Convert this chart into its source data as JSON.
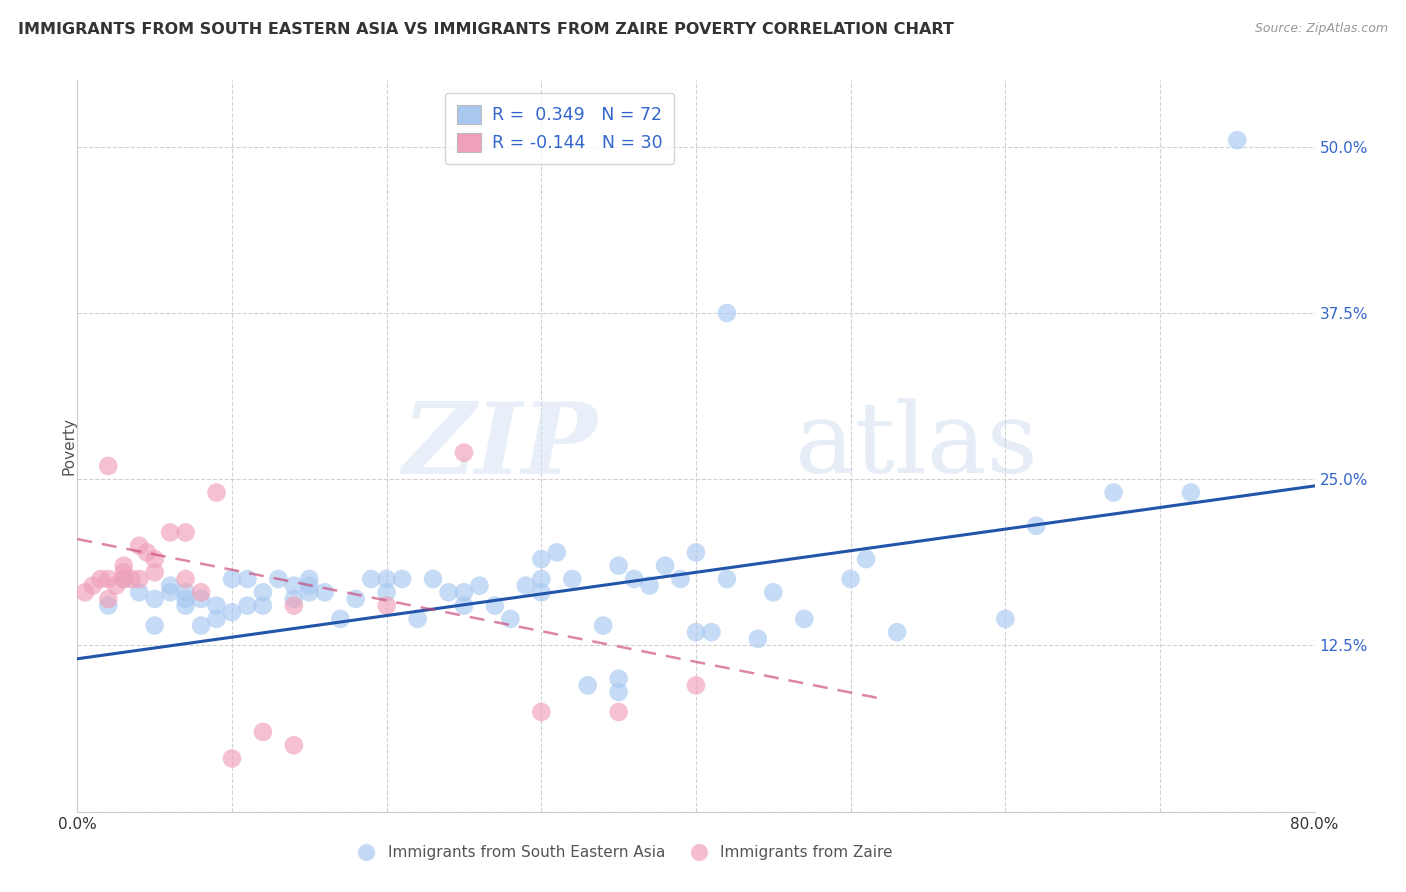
{
  "title": "IMMIGRANTS FROM SOUTH EASTERN ASIA VS IMMIGRANTS FROM ZAIRE POVERTY CORRELATION CHART",
  "source": "Source: ZipAtlas.com",
  "ylabel": "Poverty",
  "xlim": [
    0.0,
    0.8
  ],
  "ylim": [
    0.0,
    0.55
  ],
  "xticks": [
    0.0,
    0.1,
    0.2,
    0.3,
    0.4,
    0.5,
    0.6,
    0.7,
    0.8
  ],
  "xticklabels": [
    "0.0%",
    "",
    "",
    "",
    "",
    "",
    "",
    "",
    "80.0%"
  ],
  "yticks": [
    0.0,
    0.125,
    0.25,
    0.375,
    0.5
  ],
  "yticklabels": [
    "",
    "12.5%",
    "25.0%",
    "37.5%",
    "50.0%"
  ],
  "grid_color": "#cccccc",
  "background_color": "#ffffff",
  "watermark_zip": "ZIP",
  "watermark_atlas": "atlas",
  "legend_r1_label": "R =  0.349   N = 72",
  "legend_r2_label": "R = -0.144   N = 30",
  "blue_color": "#a8c8f0",
  "pink_color": "#f0a0b8",
  "blue_line_color": "#2255aa",
  "pink_line_color": "#cc4477",
  "legend_text_color": "#3366cc",
  "right_tick_color": "#3366cc",
  "blue_label": "Immigrants from South Eastern Asia",
  "pink_label": "Immigrants from Zaire",
  "blue_scatter_x": [
    0.02,
    0.03,
    0.04,
    0.05,
    0.05,
    0.06,
    0.06,
    0.07,
    0.07,
    0.07,
    0.08,
    0.08,
    0.09,
    0.09,
    0.1,
    0.1,
    0.11,
    0.11,
    0.12,
    0.12,
    0.13,
    0.14,
    0.14,
    0.15,
    0.15,
    0.16,
    0.17,
    0.18,
    0.19,
    0.2,
    0.21,
    0.22,
    0.23,
    0.24,
    0.25,
    0.26,
    0.27,
    0.28,
    0.29,
    0.3,
    0.3,
    0.31,
    0.32,
    0.33,
    0.34,
    0.35,
    0.35,
    0.36,
    0.37,
    0.38,
    0.39,
    0.4,
    0.41,
    0.42,
    0.44,
    0.45,
    0.47,
    0.5,
    0.51,
    0.53,
    0.6,
    0.62,
    0.67,
    0.72,
    0.75,
    0.42,
    0.4,
    0.35,
    0.3,
    0.25,
    0.2,
    0.15
  ],
  "blue_scatter_y": [
    0.155,
    0.175,
    0.165,
    0.16,
    0.14,
    0.165,
    0.17,
    0.16,
    0.165,
    0.155,
    0.14,
    0.16,
    0.145,
    0.155,
    0.175,
    0.15,
    0.155,
    0.175,
    0.165,
    0.155,
    0.175,
    0.17,
    0.16,
    0.175,
    0.17,
    0.165,
    0.145,
    0.16,
    0.175,
    0.165,
    0.175,
    0.145,
    0.175,
    0.165,
    0.155,
    0.17,
    0.155,
    0.145,
    0.17,
    0.175,
    0.19,
    0.195,
    0.175,
    0.095,
    0.14,
    0.09,
    0.1,
    0.175,
    0.17,
    0.185,
    0.175,
    0.135,
    0.135,
    0.175,
    0.13,
    0.165,
    0.145,
    0.175,
    0.19,
    0.135,
    0.145,
    0.215,
    0.24,
    0.24,
    0.505,
    0.375,
    0.195,
    0.185,
    0.165,
    0.165,
    0.175,
    0.165
  ],
  "pink_scatter_x": [
    0.005,
    0.01,
    0.015,
    0.02,
    0.02,
    0.025,
    0.03,
    0.03,
    0.03,
    0.035,
    0.04,
    0.04,
    0.045,
    0.05,
    0.05,
    0.06,
    0.07,
    0.07,
    0.08,
    0.09,
    0.1,
    0.12,
    0.14,
    0.14,
    0.2,
    0.25,
    0.3,
    0.35,
    0.4,
    0.02
  ],
  "pink_scatter_y": [
    0.165,
    0.17,
    0.175,
    0.175,
    0.16,
    0.17,
    0.18,
    0.175,
    0.185,
    0.175,
    0.175,
    0.2,
    0.195,
    0.18,
    0.19,
    0.21,
    0.21,
    0.175,
    0.165,
    0.24,
    0.04,
    0.06,
    0.05,
    0.155,
    0.155,
    0.27,
    0.075,
    0.075,
    0.095,
    0.26
  ],
  "blue_trend_x": [
    0.0,
    0.8
  ],
  "blue_trend_y": [
    0.115,
    0.245
  ],
  "pink_trend_x": [
    0.0,
    0.52
  ],
  "pink_trend_y": [
    0.205,
    0.085
  ]
}
